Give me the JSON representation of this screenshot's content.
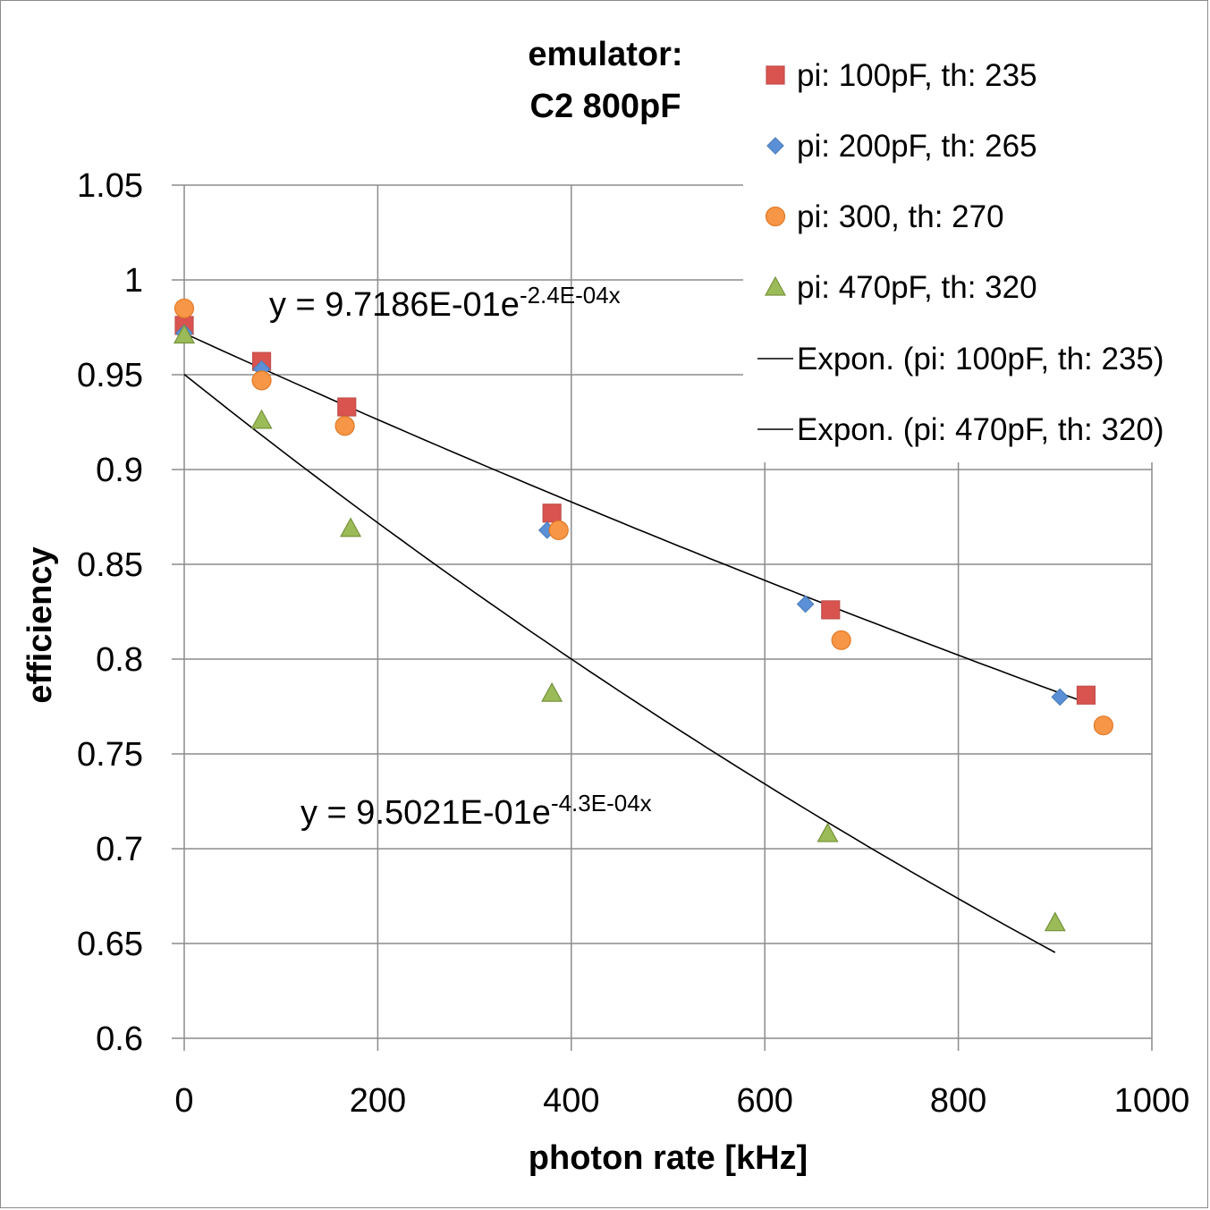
{
  "chart_data": {
    "type": "scatter",
    "title": "emulator:",
    "subtitle": "C2 800pF",
    "xlabel": "photon rate [kHz]",
    "ylabel": "efficiency",
    "xlim": [
      0,
      1000
    ],
    "ylim": [
      0.6,
      1.05
    ],
    "x_ticks": [
      0,
      200,
      400,
      600,
      800,
      1000
    ],
    "y_ticks": [
      0.6,
      0.65,
      0.7,
      0.75,
      0.8,
      0.85,
      0.9,
      0.95,
      1,
      1.05
    ],
    "x_tick_labels": [
      "0",
      "200",
      "400",
      "600",
      "800",
      "1000"
    ],
    "y_tick_labels": [
      "0.6",
      "0.65",
      "0.7",
      "0.75",
      "0.8",
      "0.85",
      "0.9",
      "0.95",
      "1",
      "1.05"
    ],
    "grid": true,
    "legend_position": "top-right",
    "series": [
      {
        "name": "pi: 100pF, th: 235",
        "marker": "square",
        "color": "#c0504d",
        "fill": "#d9534f",
        "points": [
          [
            0,
            0.976
          ],
          [
            80,
            0.957
          ],
          [
            168,
            0.933
          ],
          [
            380,
            0.877
          ],
          [
            668,
            0.826
          ],
          [
            932,
            0.781
          ]
        ]
      },
      {
        "name": "pi: 200pF, th: 265",
        "marker": "diamond",
        "color": "#4f81bd",
        "fill": "#5b8fd6",
        "points": [
          [
            0,
            0.972
          ],
          [
            80,
            0.953
          ],
          [
            375,
            0.868
          ],
          [
            642,
            0.829
          ],
          [
            905,
            0.78
          ]
        ]
      },
      {
        "name": "pi: 300, th: 270",
        "marker": "circle",
        "color": "#e07b28",
        "fill": "#f79646",
        "points": [
          [
            0,
            0.985
          ],
          [
            80,
            0.947
          ],
          [
            166,
            0.923
          ],
          [
            387,
            0.868
          ],
          [
            679,
            0.81
          ],
          [
            950,
            0.765
          ]
        ]
      },
      {
        "name": "pi: 470pF, th: 320",
        "marker": "triangle",
        "color": "#77933c",
        "fill": "#9bbb59",
        "points": [
          [
            0,
            0.971
          ],
          [
            80,
            0.926
          ],
          [
            172,
            0.869
          ],
          [
            380,
            0.782
          ],
          [
            665,
            0.708
          ],
          [
            900,
            0.661
          ]
        ]
      }
    ],
    "trendlines": [
      {
        "name": "Expon. (pi: 100pF, th: 235)",
        "type": "exponential",
        "a": 0.97186,
        "b": -0.00024,
        "x_range": [
          0,
          932
        ],
        "equation": "y = 9.7186E-01e",
        "exponent": "-2.4E-04x",
        "color": "#000000"
      },
      {
        "name": "Expon. (pi: 470pF, th: 320)",
        "type": "exponential",
        "a": 0.95021,
        "b": -0.00043,
        "x_range": [
          0,
          900
        ],
        "equation": "y = 9.5021E-01e",
        "exponent": "-4.3E-04x",
        "color": "#000000"
      }
    ]
  }
}
